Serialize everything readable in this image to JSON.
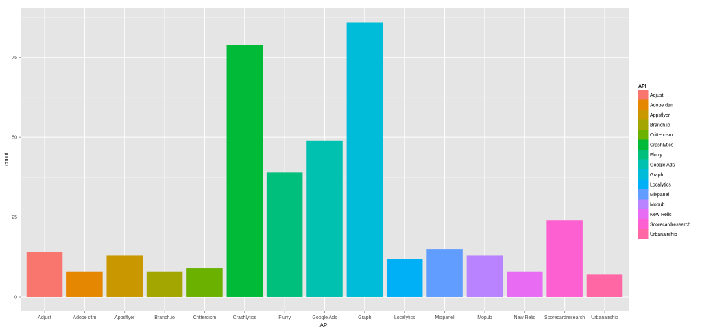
{
  "chart_data": {
    "type": "bar",
    "xlabel": "API",
    "ylabel": "count",
    "ylim": [
      0,
      90
    ],
    "yticks": [
      0,
      25,
      50,
      75
    ],
    "ytick_labels": [
      "0",
      "25",
      "50",
      "75"
    ],
    "grid": true,
    "legend_title": "API",
    "legend_position": "right",
    "categories": [
      "Adjust",
      "Adobe dtm",
      "Appsflyer",
      "Branch.io",
      "Crittercism",
      "Crashlytics",
      "Flurry",
      "Google Ads",
      "Graph",
      "Localytics",
      "Mixpanel",
      "Mopub",
      "New Relic",
      "Scorecardresearch",
      "Urbanairship"
    ],
    "values": [
      14,
      8,
      13,
      8,
      9,
      79,
      39,
      49,
      86,
      12,
      15,
      13,
      8,
      24,
      7
    ],
    "colors": [
      "#F8766D",
      "#E58700",
      "#C99800",
      "#A3A500",
      "#6BB100",
      "#00BA38",
      "#00BF7D",
      "#00C0AF",
      "#00BCD8",
      "#00B0F6",
      "#619CFF",
      "#B983FF",
      "#E76BF3",
      "#FD61D1",
      "#FF67A4"
    ]
  }
}
